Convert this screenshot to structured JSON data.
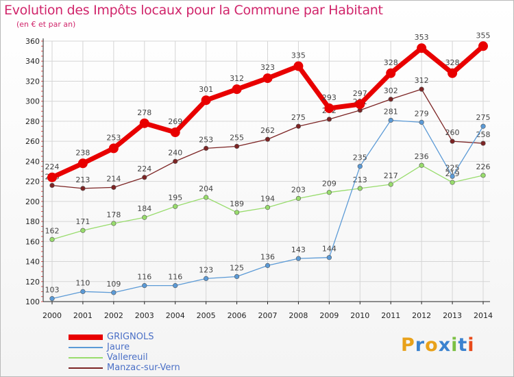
{
  "colors": {
    "GRIGNOLS": "#e80000",
    "Jaure": "#5b9ad6",
    "Vallereuil": "#98dc6c",
    "Manzac-sur-Vern": "#7c2424",
    "title": "#d0246a",
    "grid": "#d5d5d5",
    "axis": "#222222",
    "label": "#444444"
  },
  "brand": {
    "text": "Proxiti",
    "letters": [
      "P",
      "r",
      "o",
      "x",
      "i",
      "t",
      "i"
    ],
    "letter_colors": [
      "#e8a11a",
      "#3a82cf",
      "#e8a11a",
      "#3a82cf",
      "#7cc043",
      "#3a82cf",
      "#e84a1a"
    ]
  },
  "chart_data": {
    "type": "line",
    "title": "Evolution des Impôts locaux pour la Commune par Habitant",
    "subtitle": "(en € et par an)",
    "xlabel": "",
    "ylabel": "",
    "x": [
      "2000",
      "2001",
      "2002",
      "2003",
      "2004",
      "2005",
      "2006",
      "2007",
      "2008",
      "2009",
      "2010",
      "2011",
      "2012",
      "2013",
      "2014"
    ],
    "ylim": [
      100,
      360
    ],
    "yticks": [
      100,
      120,
      140,
      160,
      180,
      200,
      220,
      240,
      260,
      280,
      300,
      320,
      340,
      360
    ],
    "grid": true,
    "legend_position": "bottom-left",
    "series": [
      {
        "name": "Manzac-sur-Vern",
        "values": [
          216,
          213,
          214,
          224,
          240,
          253,
          255,
          262,
          275,
          282,
          291,
          302,
          312,
          260,
          258
        ]
      },
      {
        "name": "Vallereuil",
        "values": [
          162,
          171,
          178,
          184,
          195,
          204,
          189,
          194,
          203,
          209,
          213,
          217,
          236,
          219,
          226
        ]
      },
      {
        "name": "Jaure",
        "values": [
          103,
          110,
          109,
          116,
          116,
          123,
          125,
          136,
          143,
          144,
          235,
          281,
          279,
          225,
          275
        ]
      },
      {
        "name": "GRIGNOLS",
        "values": [
          224,
          238,
          253,
          278,
          269,
          301,
          312,
          323,
          335,
          293,
          297,
          328,
          353,
          328,
          355
        ]
      }
    ]
  }
}
